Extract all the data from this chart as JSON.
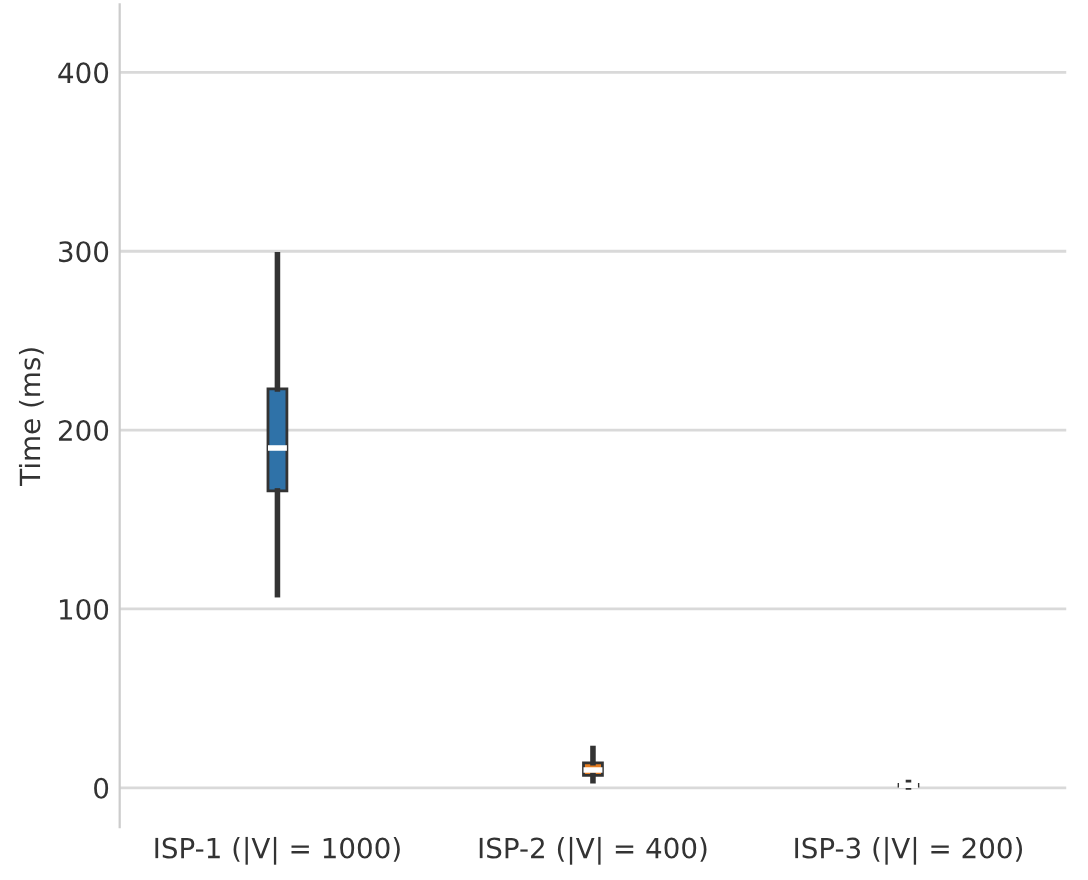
{
  "chart_data": {
    "type": "box",
    "ylabel": "Time (ms)",
    "categories": [
      "ISP-1 (|V| = 1000)",
      "ISP-2 (|V| = 400)",
      "ISP-3 (|V| = 200)"
    ],
    "boxes": [
      {
        "low": 108,
        "q1": 166,
        "median": 190,
        "q3": 223,
        "high": 298
      },
      {
        "low": 4,
        "q1": 7,
        "median": 10,
        "q3": 14,
        "high": 22
      },
      {
        "low": 0.5,
        "q1": 1,
        "median": 1.5,
        "q3": 2,
        "high": 3
      }
    ],
    "colors": [
      "#2f72a8",
      "#e67e22",
      "#2ca02c"
    ],
    "ylim": [
      -22,
      438
    ],
    "yticks": [
      0,
      100,
      200,
      300,
      400
    ],
    "grid": "y"
  }
}
